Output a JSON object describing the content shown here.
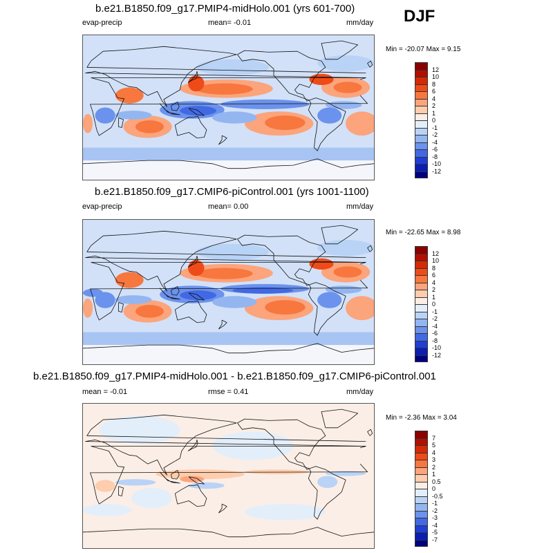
{
  "season": "DJF",
  "panels": [
    {
      "title": "b.e21.B1850.f09_g17.PMIP4-midHolo.001 (yrs 601-700)",
      "left_label": "evap-precip",
      "center_label": "mean=  -0.01",
      "units": "mm/day",
      "minmax": "Min = -20.07 Max =   9.15",
      "kind": "field"
    },
    {
      "title": "b.e21.B1850.f09_g17.CMIP6-piControl.001 (yrs 1001-1100)",
      "left_label": "evap-precip",
      "center_label": "mean=   0.00",
      "units": "mm/day",
      "minmax": "Min = -22.65 Max =   8.98",
      "kind": "field"
    },
    {
      "title": "b.e21.B1850.f09_g17.PMIP4-midHolo.001 - b.e21.B1850.f09_g17.CMIP6-piControl.001",
      "left_label": "mean =  -0.01",
      "center_label": "rmse =   0.41",
      "units": "mm/day",
      "minmax": "Min =  -2.36 Max =   3.04",
      "kind": "diff"
    }
  ],
  "colorbar_field": {
    "levels": [
      "12",
      "10",
      "8",
      "6",
      "4",
      "2",
      "1",
      "0",
      "-1",
      "-2",
      "-4",
      "-6",
      "-8",
      "-10",
      "-12"
    ],
    "colors": [
      "#8b0000",
      "#b30f00",
      "#d42a07",
      "#ef4b18",
      "#f7773f",
      "#fca47c",
      "#fdcdad",
      "#fbeee6",
      "#e3eefb",
      "#b9d3f6",
      "#93b6f1",
      "#6b92ec",
      "#4269e4",
      "#1f3fd4",
      "#0b1eb3",
      "#000080"
    ]
  },
  "colorbar_diff": {
    "levels": [
      "7",
      "5",
      "4",
      "3",
      "2",
      "1",
      "0.5",
      "0",
      "-0.5",
      "-1",
      "-2",
      "-3",
      "-4",
      "-5",
      "-7"
    ],
    "colors": [
      "#8b0000",
      "#b30f00",
      "#d42a07",
      "#ef4b18",
      "#f7773f",
      "#fca47c",
      "#fdcdad",
      "#fbeee6",
      "#e3eefb",
      "#b9d3f6",
      "#93b6f1",
      "#6b92ec",
      "#4269e4",
      "#1f3fd4",
      "#0b1eb3",
      "#000080"
    ]
  },
  "chart_data": {
    "type": "heatmap",
    "variable": "evap-precip",
    "units": "mm/day",
    "season": "DJF",
    "panels": [
      {
        "title": "b.e21.B1850.f09_g17.PMIP4-midHolo.001 (yrs 601-700)",
        "mean": -0.01,
        "min": -20.07,
        "max": 9.15
      },
      {
        "title": "b.e21.B1850.f09_g17.CMIP6-piControl.001 (yrs 1001-1100)",
        "mean": 0.0,
        "min": -22.65,
        "max": 8.98
      },
      {
        "title": "b.e21.B1850.f09_g17.PMIP4-midHolo.001 - b.e21.B1850.f09_g17.CMIP6-piControl.001",
        "mean": -0.01,
        "rmse": 0.41,
        "min": -2.36,
        "max": 3.04
      }
    ],
    "contour_levels_field": [
      -12,
      -10,
      -8,
      -6,
      -4,
      -2,
      -1,
      0,
      1,
      2,
      4,
      6,
      8,
      10,
      12
    ],
    "contour_levels_diff": [
      -7,
      -5,
      -4,
      -3,
      -2,
      -1,
      -0.5,
      0,
      0.5,
      1,
      2,
      3,
      4,
      5,
      7
    ]
  }
}
